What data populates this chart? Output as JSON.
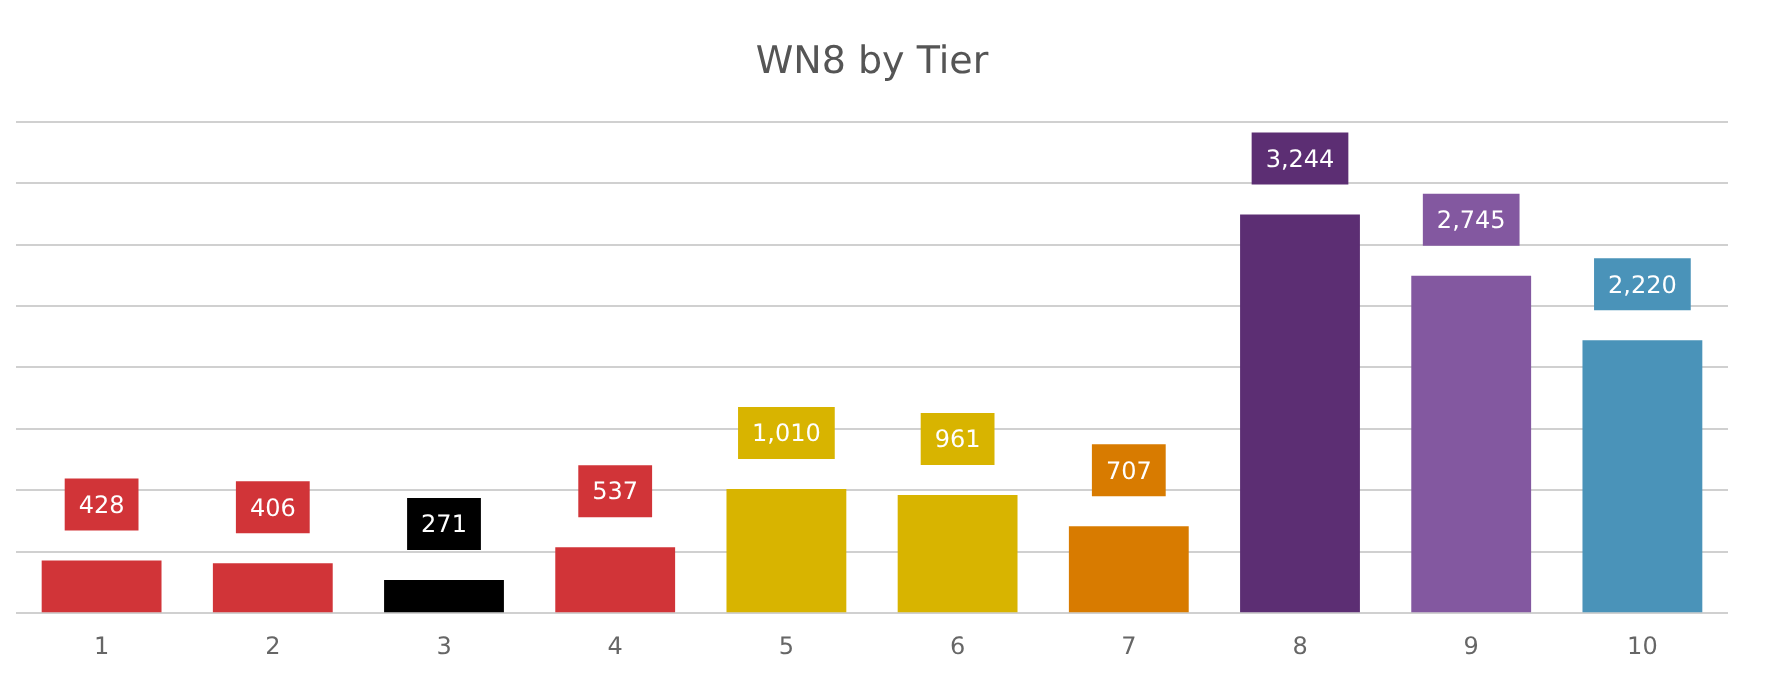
{
  "chart_data": {
    "type": "bar",
    "title": "WN8 by Tier",
    "categories": [
      "1",
      "2",
      "3",
      "4",
      "5",
      "6",
      "7",
      "8",
      "9",
      "10"
    ],
    "values": [
      428,
      406,
      271,
      537,
      1010,
      961,
      707,
      3244,
      2745,
      2220
    ],
    "colors": [
      "#d13438",
      "#d13438",
      "#000000",
      "#d13438",
      "#d8b400",
      "#d8b400",
      "#d87b00",
      "#5c2e73",
      "#8358a0",
      "#4a93b9"
    ],
    "ylim": [
      0,
      4000
    ],
    "yticks": [
      {
        "value": 0,
        "label": null
      },
      {
        "value": 500,
        "label": null
      },
      {
        "value": 1000,
        "label": null
      },
      {
        "value": 1500,
        "label": null
      },
      {
        "value": 2000,
        "label": null
      },
      {
        "value": 2500,
        "label": null
      },
      {
        "value": 3000,
        "label": null
      },
      {
        "value": 3500,
        "label": null
      },
      {
        "value": 4000,
        "label": null
      }
    ],
    "value_labels": [
      "428",
      "406",
      "271",
      "537",
      "1,010",
      "961",
      "707",
      "3,244",
      "2,745",
      "2,220"
    ],
    "grid": "y",
    "tick_labels": "x"
  }
}
